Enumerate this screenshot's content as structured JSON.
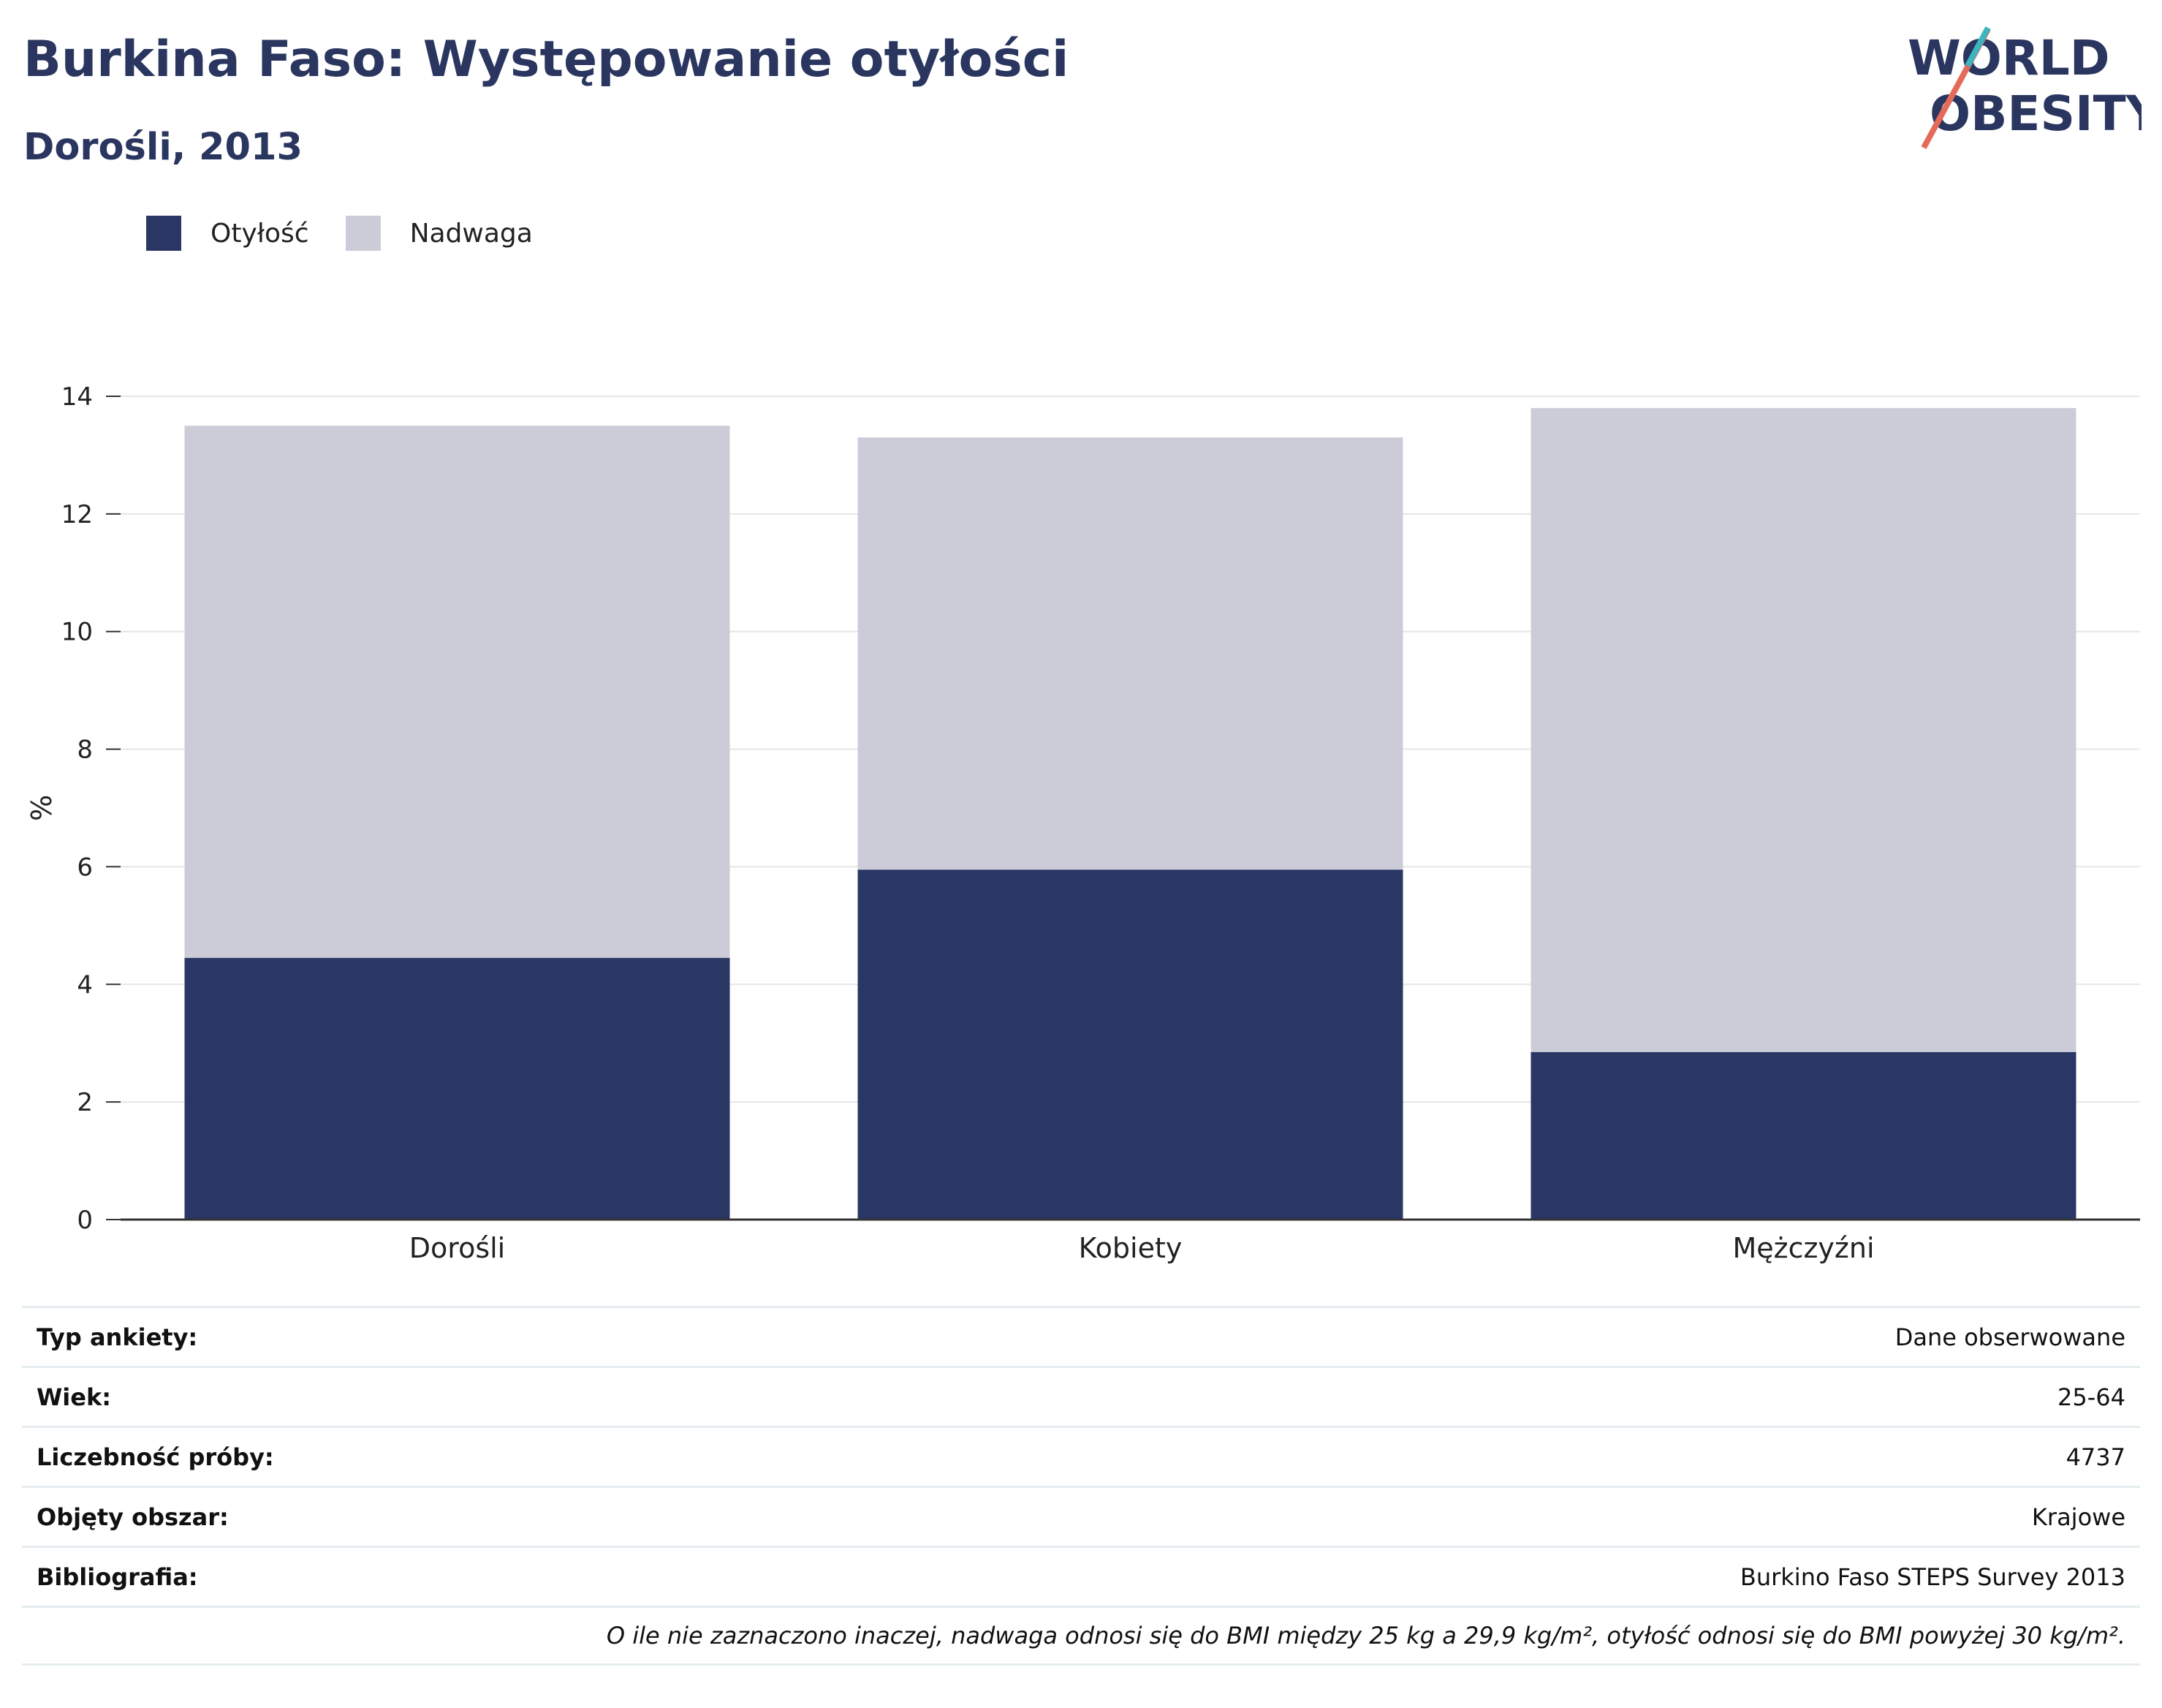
{
  "header": {
    "title": "Burkina Faso: Występowanie otyłości",
    "subtitle": "Dorośli, 2013",
    "logo_text": "WORLD OBESITY"
  },
  "legend": {
    "items": [
      {
        "label": "Otyłość",
        "color": "#2a3764"
      },
      {
        "label": "Nadwaga",
        "color": "#cbccd8"
      }
    ]
  },
  "chart_data": {
    "type": "bar",
    "stacked": true,
    "categories": [
      "Dorośli",
      "Kobiety",
      "Mężczyźni"
    ],
    "series": [
      {
        "name": "Otyłość",
        "color": "#2a3764",
        "values": [
          4.45,
          5.95,
          2.85
        ]
      },
      {
        "name": "Nadwaga",
        "color": "#cbccd8",
        "values": [
          9.05,
          7.35,
          10.95
        ]
      }
    ],
    "ylabel": "%",
    "ylim": [
      0,
      14
    ],
    "yticks": [
      0,
      2,
      4,
      6,
      8,
      10,
      12,
      14
    ],
    "grid": true
  },
  "info": {
    "rows": [
      {
        "key": "Typ ankiety:",
        "value": "Dane obserwowane"
      },
      {
        "key": "Wiek:",
        "value": "25-64"
      },
      {
        "key": "Liczebność próby:",
        "value": "4737"
      },
      {
        "key": "Objęty obszar:",
        "value": "Krajowe"
      },
      {
        "key": "Bibliografia:",
        "value": "Burkino Faso STEPS Survey 2013"
      }
    ],
    "note": "O ile nie zaznaczono inaczej, nadwaga odnosi się do BMI między 25 kg a 29,9 kg/m², otyłość odnosi się do BMI powyżej 30 kg/m²."
  }
}
